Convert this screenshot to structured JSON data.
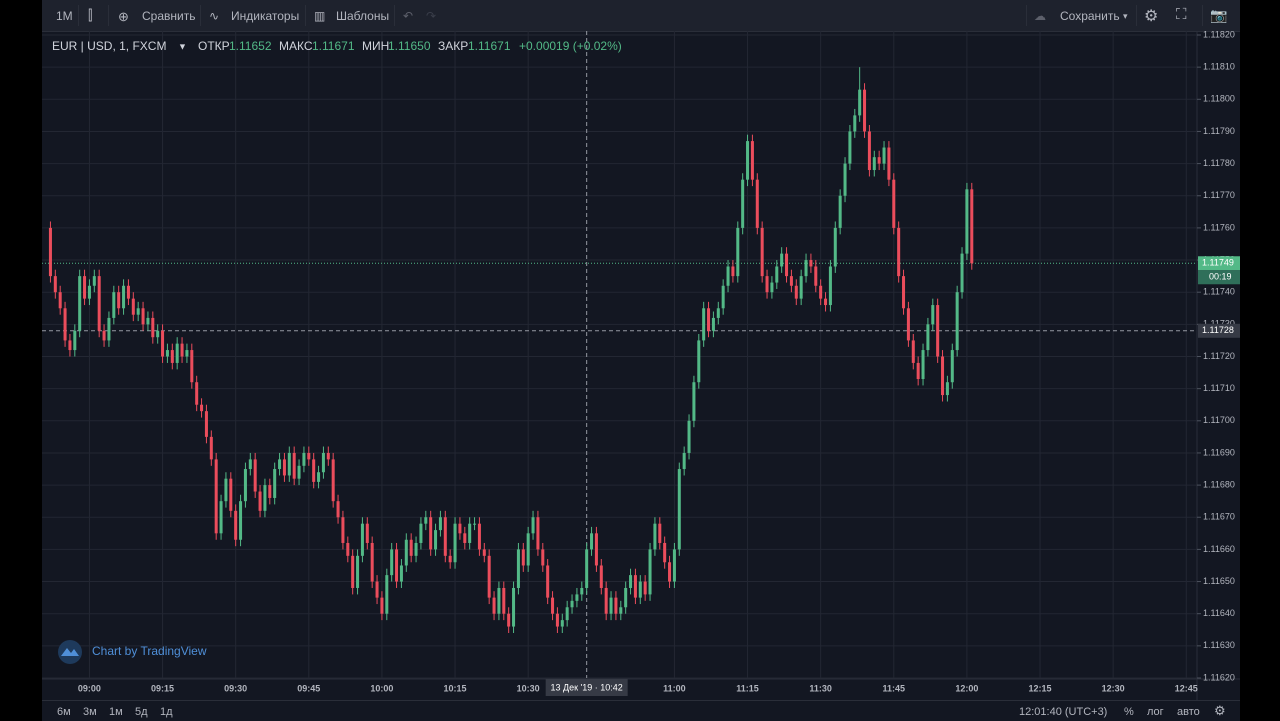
{
  "toolbar": {
    "interval": "1М",
    "compare": "Сравнить",
    "indicators": "Индикаторы",
    "templates": "Шаблоны",
    "save": "Сохранить"
  },
  "legend": {
    "symbol": "EUR | USD, 1, FXCM",
    "open_label": "ОТКР",
    "open": "1.11652",
    "high_label": "МАКС",
    "high": "1.11671",
    "low_label": "МИН",
    "low": "1.11650",
    "close_label": "ЗАКР",
    "close": "1.11671",
    "change": "+0.00019 (+0.02%)"
  },
  "watermark": "Chart by TradingView",
  "bottom_bar": {
    "ranges": [
      "6м",
      "3м",
      "1м",
      "5д",
      "1д"
    ],
    "clock": "12:01:40 (UTC+3)",
    "percent": "%",
    "log": "лог",
    "auto": "авто"
  },
  "chart_data": {
    "type": "candlestick",
    "up_color": "#53b987",
    "down_color": "#eb4d5c",
    "grid": true,
    "xlim": [
      531.5,
      767.2
    ],
    "xticks": [
      {
        "value": 540,
        "label": "09:00"
      },
      {
        "value": 555,
        "label": "09:15"
      },
      {
        "value": 570,
        "label": "09:30"
      },
      {
        "value": 585,
        "label": "09:45"
      },
      {
        "value": 600,
        "label": "10:00"
      },
      {
        "value": 615,
        "label": "10:15"
      },
      {
        "value": 630,
        "label": "10:30"
      },
      {
        "value": 660,
        "label": "11:00"
      },
      {
        "value": 675,
        "label": "11:15"
      },
      {
        "value": 690,
        "label": "11:30"
      },
      {
        "value": 705,
        "label": "11:45"
      },
      {
        "value": 720,
        "label": "12:00"
      },
      {
        "value": 735,
        "label": "12:15"
      },
      {
        "value": 750,
        "label": "12:30"
      },
      {
        "value": 765,
        "label": "12:45"
      }
    ],
    "ylim": [
      1.1162,
      1.1182
    ],
    "yticks": [
      {
        "value": 1.1162,
        "label": "1.11620"
      },
      {
        "value": 1.1163,
        "label": "1.11630"
      },
      {
        "value": 1.1164,
        "label": "1.11640"
      },
      {
        "value": 1.1165,
        "label": "1.11650"
      },
      {
        "value": 1.1166,
        "label": "1.11660"
      },
      {
        "value": 1.1167,
        "label": "1.11670"
      },
      {
        "value": 1.1168,
        "label": "1.11680"
      },
      {
        "value": 1.1169,
        "label": "1.11690"
      },
      {
        "value": 1.117,
        "label": "1.11700"
      },
      {
        "value": 1.1171,
        "label": "1.11710"
      },
      {
        "value": 1.1172,
        "label": "1.11720"
      },
      {
        "value": 1.1173,
        "label": "1.11730"
      },
      {
        "value": 1.1174,
        "label": "1.11740"
      },
      {
        "value": 1.1175,
        "label": "1.11750"
      },
      {
        "value": 1.1176,
        "label": "1.11760"
      },
      {
        "value": 1.1177,
        "label": "1.11770"
      },
      {
        "value": 1.1178,
        "label": "1.11780"
      },
      {
        "value": 1.1179,
        "label": "1.11790"
      },
      {
        "value": 1.118,
        "label": "1.11800"
      },
      {
        "value": 1.1181,
        "label": "1.11810"
      },
      {
        "value": 1.1182,
        "label": "1.11820"
      }
    ],
    "last_price": {
      "value": 1.11749,
      "label": "1.11749",
      "countdown": "00:19"
    },
    "crosshair": {
      "time": {
        "value": 642,
        "label": "13 Дек '19 · 10:42"
      },
      "price": {
        "value": 1.11728,
        "label": "1.11728"
      }
    },
    "x": [
      532,
      533,
      534,
      535,
      536,
      537,
      538,
      539,
      540,
      541,
      542,
      543,
      544,
      545,
      546,
      547,
      548,
      549,
      550,
      551,
      552,
      553,
      554,
      555,
      556,
      557,
      558,
      559,
      560,
      561,
      562,
      563,
      564,
      565,
      566,
      567,
      568,
      569,
      570,
      571,
      572,
      573,
      574,
      575,
      576,
      577,
      578,
      579,
      580,
      581,
      582,
      583,
      584,
      585,
      586,
      587,
      588,
      589,
      590,
      591,
      592,
      593,
      594,
      595,
      596,
      597,
      598,
      599,
      600,
      601,
      602,
      603,
      604,
      605,
      606,
      607,
      608,
      609,
      610,
      611,
      612,
      613,
      614,
      615,
      616,
      617,
      618,
      619,
      620,
      621,
      622,
      623,
      624,
      625,
      626,
      627,
      628,
      629,
      630,
      631,
      632,
      633,
      634,
      635,
      636,
      637,
      638,
      639,
      640,
      641,
      642,
      643,
      644,
      645,
      646,
      647,
      648,
      649,
      650,
      651,
      652,
      653,
      654,
      655,
      656,
      657,
      658,
      659,
      660,
      661,
      662,
      663,
      664,
      665,
      666,
      667,
      668,
      669,
      670,
      671,
      672,
      673,
      674,
      675,
      676,
      677,
      678,
      679,
      680,
      681,
      682,
      683,
      684,
      685,
      686,
      687,
      688,
      689,
      690,
      691,
      692,
      693,
      694,
      695,
      696,
      697,
      698,
      699,
      700,
      701,
      702,
      703,
      704,
      705,
      706,
      707,
      708,
      709,
      710,
      711,
      712,
      713,
      714,
      715,
      716,
      717,
      718,
      719,
      720,
      721
    ],
    "open": [
      1.1176,
      1.11745,
      1.1174,
      1.11735,
      1.11725,
      1.11722,
      1.11728,
      1.11745,
      1.11738,
      1.11742,
      1.11745,
      1.11728,
      1.11725,
      1.11732,
      1.1174,
      1.11735,
      1.11742,
      1.11738,
      1.11733,
      1.11735,
      1.1173,
      1.11732,
      1.11726,
      1.11728,
      1.1172,
      1.11722,
      1.11718,
      1.11724,
      1.1172,
      1.11722,
      1.11712,
      1.11705,
      1.11703,
      1.11695,
      1.11688,
      1.11665,
      1.11675,
      1.11682,
      1.11672,
      1.11663,
      1.11675,
      1.11685,
      1.11688,
      1.11678,
      1.11672,
      1.1168,
      1.11676,
      1.11685,
      1.11688,
      1.11683,
      1.1169,
      1.11682,
      1.11686,
      1.1169,
      1.11688,
      1.11681,
      1.11684,
      1.1169,
      1.11688,
      1.11675,
      1.1167,
      1.11662,
      1.11658,
      1.11648,
      1.11658,
      1.11668,
      1.11662,
      1.1165,
      1.11645,
      1.1164,
      1.11652,
      1.1166,
      1.1165,
      1.11655,
      1.11663,
      1.11658,
      1.11662,
      1.11668,
      1.1167,
      1.1166,
      1.11666,
      1.1167,
      1.11658,
      1.11656,
      1.11668,
      1.11665,
      1.11662,
      1.11668,
      1.11668,
      1.1166,
      1.11658,
      1.11645,
      1.1164,
      1.11648,
      1.1164,
      1.11636,
      1.11648,
      1.1166,
      1.11655,
      1.11665,
      1.1167,
      1.1166,
      1.11655,
      1.11645,
      1.1164,
      1.11636,
      1.11638,
      1.11642,
      1.11644,
      1.11646,
      1.11648,
      1.1166,
      1.11665,
      1.11655,
      1.11648,
      1.1164,
      1.11645,
      1.1164,
      1.11642,
      1.11648,
      1.11652,
      1.11645,
      1.1165,
      1.11646,
      1.1166,
      1.11668,
      1.11662,
      1.11656,
      1.1165,
      1.1166,
      1.11685,
      1.1169,
      1.117,
      1.11712,
      1.11725,
      1.11735,
      1.11728,
      1.11732,
      1.11735,
      1.11742,
      1.11748,
      1.11745,
      1.1176,
      1.11775,
      1.11787,
      1.11775,
      1.1176,
      1.11745,
      1.1174,
      1.11743,
      1.11748,
      1.11752,
      1.11745,
      1.11742,
      1.11738,
      1.11745,
      1.1175,
      1.11748,
      1.11742,
      1.11738,
      1.11736,
      1.11748,
      1.1176,
      1.1177,
      1.1178,
      1.1179,
      1.11795,
      1.11803,
      1.1179,
      1.11778,
      1.11782,
      1.1178,
      1.11785,
      1.11775,
      1.1176,
      1.11745,
      1.11735,
      1.11725,
      1.11718,
      1.11713,
      1.11722,
      1.1173,
      1.11736,
      1.1172,
      1.11708,
      1.11712,
      1.11722,
      1.1174,
      1.11752,
      1.11772
    ],
    "high": [
      1.11762,
      1.11747,
      1.11742,
      1.11737,
      1.11727,
      1.1173,
      1.11747,
      1.11747,
      1.11744,
      1.11747,
      1.11747,
      1.1173,
      1.11734,
      1.11742,
      1.11742,
      1.11744,
      1.11744,
      1.1174,
      1.11737,
      1.11737,
      1.11734,
      1.11734,
      1.1173,
      1.1173,
      1.11724,
      1.11724,
      1.11726,
      1.11726,
      1.11724,
      1.11724,
      1.11714,
      1.11707,
      1.11705,
      1.11697,
      1.1169,
      1.11677,
      1.11684,
      1.11684,
      1.11674,
      1.11677,
      1.11687,
      1.1169,
      1.1169,
      1.1168,
      1.11682,
      1.11682,
      1.11687,
      1.1169,
      1.1169,
      1.11692,
      1.11692,
      1.11688,
      1.11692,
      1.11692,
      1.1169,
      1.11686,
      1.11692,
      1.11692,
      1.1169,
      1.11677,
      1.11672,
      1.11664,
      1.1166,
      1.1166,
      1.1167,
      1.1167,
      1.11664,
      1.11652,
      1.11647,
      1.11654,
      1.11662,
      1.11662,
      1.11657,
      1.11665,
      1.11665,
      1.11664,
      1.1167,
      1.11672,
      1.11672,
      1.11668,
      1.11672,
      1.11672,
      1.1166,
      1.1167,
      1.1167,
      1.11667,
      1.1167,
      1.1167,
      1.1167,
      1.11662,
      1.1166,
      1.11647,
      1.1165,
      1.1165,
      1.11642,
      1.1165,
      1.11662,
      1.11662,
      1.11667,
      1.11672,
      1.11672,
      1.11662,
      1.11657,
      1.11647,
      1.11642,
      1.1164,
      1.11644,
      1.11646,
      1.11648,
      1.1165,
      1.11662,
      1.11667,
      1.11667,
      1.11657,
      1.1165,
      1.11647,
      1.11647,
      1.11644,
      1.1165,
      1.11654,
      1.11654,
      1.11652,
      1.11652,
      1.11662,
      1.1167,
      1.1167,
      1.11664,
      1.11658,
      1.11662,
      1.11687,
      1.11692,
      1.11702,
      1.11714,
      1.11727,
      1.11737,
      1.11737,
      1.11734,
      1.11737,
      1.11744,
      1.1175,
      1.1175,
      1.11762,
      1.11777,
      1.11789,
      1.11789,
      1.11777,
      1.11762,
      1.11747,
      1.11745,
      1.1175,
      1.11754,
      1.11754,
      1.11747,
      1.11744,
      1.11747,
      1.11752,
      1.11752,
      1.1175,
      1.11744,
      1.1174,
      1.1175,
      1.11762,
      1.11772,
      1.11782,
      1.11792,
      1.11797,
      1.1181,
      1.11805,
      1.11792,
      1.11784,
      1.11784,
      1.11787,
      1.11787,
      1.11777,
      1.11762,
      1.11747,
      1.11737,
      1.11727,
      1.1172,
      1.11724,
      1.11732,
      1.11738,
      1.11738,
      1.11722,
      1.11714,
      1.11724,
      1.11742,
      1.11754,
      1.11774,
      1.11774
    ],
    "low": [
      1.11743,
      1.11738,
      1.11733,
      1.11723,
      1.1172,
      1.1172,
      1.11726,
      1.11736,
      1.11736,
      1.1174,
      1.11726,
      1.11723,
      1.11723,
      1.1173,
      1.11733,
      1.11733,
      1.11736,
      1.11731,
      1.11731,
      1.11728,
      1.11728,
      1.11724,
      1.11724,
      1.11718,
      1.11718,
      1.11716,
      1.11716,
      1.11718,
      1.11718,
      1.1171,
      1.11703,
      1.11701,
      1.11693,
      1.11686,
      1.11663,
      1.11663,
      1.11673,
      1.1167,
      1.11661,
      1.11661,
      1.11673,
      1.11683,
      1.11676,
      1.1167,
      1.1167,
      1.11674,
      1.11674,
      1.11683,
      1.11681,
      1.11681,
      1.1168,
      1.1168,
      1.11684,
      1.11686,
      1.11679,
      1.11679,
      1.11682,
      1.11686,
      1.11673,
      1.11668,
      1.1166,
      1.11656,
      1.11646,
      1.11646,
      1.11656,
      1.1166,
      1.11648,
      1.11643,
      1.11638,
      1.11638,
      1.1165,
      1.11648,
      1.11648,
      1.11653,
      1.11656,
      1.11656,
      1.1166,
      1.11666,
      1.11658,
      1.11658,
      1.11664,
      1.11656,
      1.11654,
      1.11654,
      1.11663,
      1.1166,
      1.1166,
      1.11666,
      1.11658,
      1.11656,
      1.11643,
      1.11638,
      1.11638,
      1.11638,
      1.11634,
      1.11634,
      1.11646,
      1.11653,
      1.11653,
      1.11663,
      1.11658,
      1.11653,
      1.11643,
      1.11638,
      1.11634,
      1.11634,
      1.11636,
      1.1164,
      1.11642,
      1.11644,
      1.11646,
      1.11658,
      1.11653,
      1.11646,
      1.11638,
      1.11638,
      1.11638,
      1.11638,
      1.1164,
      1.11646,
      1.11643,
      1.11643,
      1.11644,
      1.11644,
      1.11658,
      1.1166,
      1.11654,
      1.11648,
      1.11648,
      1.11658,
      1.11683,
      1.11688,
      1.11698,
      1.1171,
      1.11723,
      1.11726,
      1.11726,
      1.1173,
      1.11733,
      1.1174,
      1.11743,
      1.11743,
      1.11758,
      1.11773,
      1.11773,
      1.11758,
      1.11743,
      1.11738,
      1.11738,
      1.11741,
      1.11746,
      1.11743,
      1.1174,
      1.11736,
      1.11736,
      1.11743,
      1.11746,
      1.1174,
      1.11736,
      1.11734,
      1.11734,
      1.11746,
      1.11758,
      1.11768,
      1.11778,
      1.11788,
      1.11793,
      1.11788,
      1.11776,
      1.11776,
      1.11778,
      1.11778,
      1.11773,
      1.11758,
      1.11743,
      1.11733,
      1.11723,
      1.11716,
      1.11711,
      1.11711,
      1.1172,
      1.11728,
      1.11718,
      1.11706,
      1.11706,
      1.1171,
      1.1172,
      1.11738,
      1.1175,
      1.11747
    ],
    "close": [
      1.11745,
      1.1174,
      1.11735,
      1.11725,
      1.11722,
      1.11728,
      1.11745,
      1.11738,
      1.11742,
      1.11745,
      1.11728,
      1.11725,
      1.11732,
      1.1174,
      1.11735,
      1.11742,
      1.11738,
      1.11733,
      1.11735,
      1.1173,
      1.11732,
      1.11726,
      1.11728,
      1.1172,
      1.11722,
      1.11718,
      1.11724,
      1.1172,
      1.11722,
      1.11712,
      1.11705,
      1.11703,
      1.11695,
      1.11688,
      1.11665,
      1.11675,
      1.11682,
      1.11672,
      1.11663,
      1.11675,
      1.11685,
      1.11688,
      1.11678,
      1.11672,
      1.1168,
      1.11676,
      1.11685,
      1.11688,
      1.11683,
      1.1169,
      1.11682,
      1.11686,
      1.1169,
      1.11688,
      1.11681,
      1.11684,
      1.1169,
      1.11688,
      1.11675,
      1.1167,
      1.11662,
      1.11658,
      1.11648,
      1.11658,
      1.11668,
      1.11662,
      1.1165,
      1.11645,
      1.1164,
      1.11652,
      1.1166,
      1.1165,
      1.11655,
      1.11663,
      1.11658,
      1.11662,
      1.11668,
      1.1167,
      1.1166,
      1.11666,
      1.1167,
      1.11658,
      1.11656,
      1.11668,
      1.11665,
      1.11662,
      1.11668,
      1.11668,
      1.1166,
      1.11658,
      1.11645,
      1.1164,
      1.11648,
      1.1164,
      1.11636,
      1.11648,
      1.1166,
      1.11655,
      1.11665,
      1.1167,
      1.1166,
      1.11655,
      1.11645,
      1.1164,
      1.11636,
      1.11638,
      1.11642,
      1.11644,
      1.11646,
      1.11648,
      1.1166,
      1.11665,
      1.11655,
      1.11648,
      1.1164,
      1.11645,
      1.1164,
      1.11642,
      1.11648,
      1.11652,
      1.11645,
      1.1165,
      1.11646,
      1.1166,
      1.11668,
      1.11662,
      1.11656,
      1.1165,
      1.1166,
      1.11685,
      1.1169,
      1.117,
      1.11712,
      1.11725,
      1.11735,
      1.11728,
      1.11732,
      1.11735,
      1.11742,
      1.11748,
      1.11745,
      1.1176,
      1.11775,
      1.11787,
      1.11775,
      1.1176,
      1.11745,
      1.1174,
      1.11743,
      1.11748,
      1.11752,
      1.11745,
      1.11742,
      1.11738,
      1.11745,
      1.1175,
      1.11748,
      1.11742,
      1.11738,
      1.11736,
      1.11748,
      1.1176,
      1.1177,
      1.1178,
      1.1179,
      1.11795,
      1.11803,
      1.1179,
      1.11778,
      1.11782,
      1.1178,
      1.11785,
      1.11775,
      1.1176,
      1.11745,
      1.11735,
      1.11725,
      1.11718,
      1.11713,
      1.11722,
      1.1173,
      1.11736,
      1.1172,
      1.11708,
      1.11712,
      1.11722,
      1.1174,
      1.11752,
      1.11772,
      1.11749
    ]
  }
}
